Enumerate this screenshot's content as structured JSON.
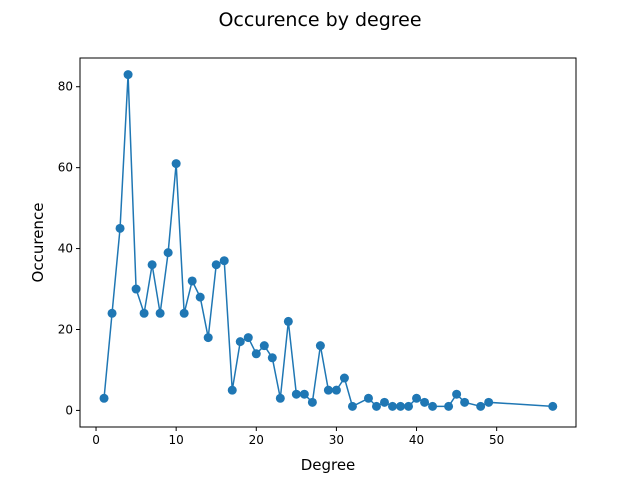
{
  "chart_data": {
    "type": "line",
    "title": "Occurence by degree",
    "xlabel": "Degree",
    "ylabel": "Occurence",
    "xlim": [
      -2.0,
      59.9
    ],
    "ylim": [
      -4.1,
      87.1
    ],
    "xticks": [
      0,
      10,
      20,
      30,
      40,
      50
    ],
    "yticks": [
      0,
      20,
      40,
      60,
      80
    ],
    "grid": false,
    "line_color": "#1f77b4",
    "series": [
      {
        "x": [
          1,
          2,
          3,
          4,
          5,
          6,
          7,
          8,
          9,
          10,
          11,
          12,
          13,
          14,
          15,
          16,
          17,
          18,
          19,
          20,
          21,
          22,
          23,
          24,
          25,
          26,
          27,
          28,
          29,
          30,
          31,
          32,
          34,
          35,
          36,
          37,
          38,
          39,
          40,
          41,
          42,
          44,
          45,
          46,
          48,
          49,
          57
        ],
        "y": [
          3,
          24,
          45,
          83,
          30,
          24,
          36,
          24,
          39,
          61,
          24,
          32,
          28,
          18,
          36,
          37,
          5,
          17,
          18,
          14,
          16,
          13,
          3,
          22,
          4,
          4,
          2,
          16,
          5,
          5,
          8,
          1,
          3,
          1,
          2,
          1,
          1,
          1,
          3,
          2,
          1,
          1,
          4,
          2,
          1,
          2,
          1
        ]
      }
    ]
  }
}
